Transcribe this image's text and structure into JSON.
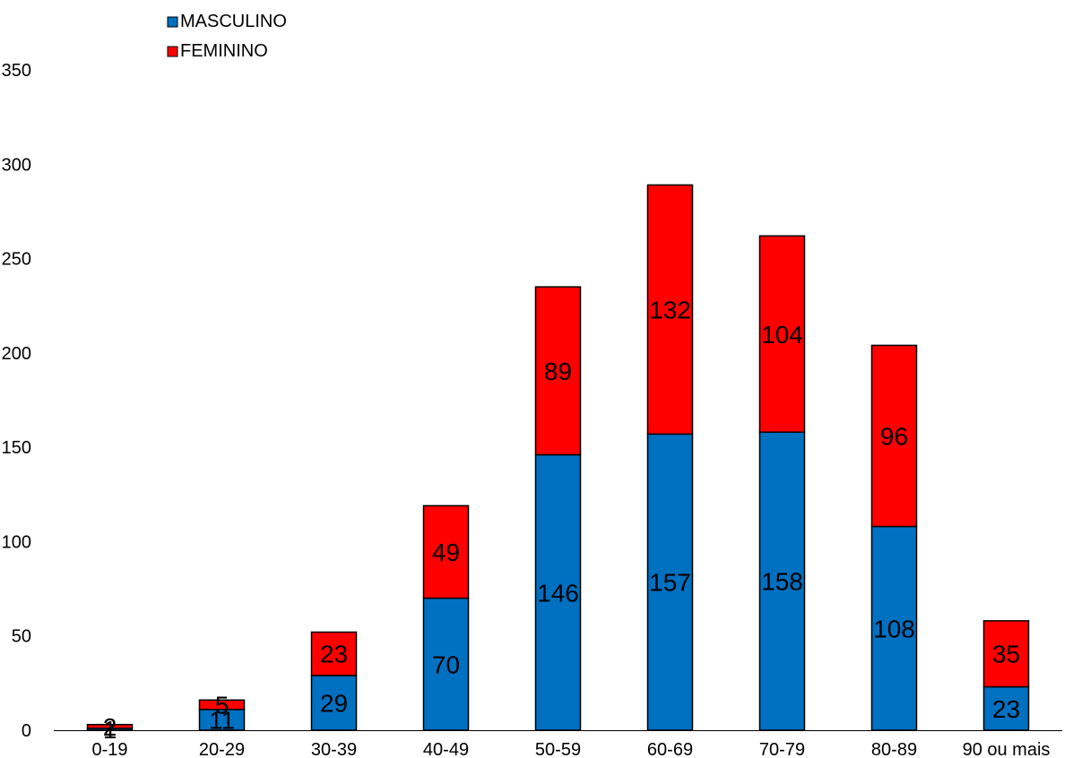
{
  "chart_data": {
    "type": "bar",
    "stacked": true,
    "categories": [
      "0-19",
      "20-29",
      "30-39",
      "40-49",
      "50-59",
      "60-69",
      "70-79",
      "80-89",
      "90 ou mais"
    ],
    "series": [
      {
        "name": "MASCULINO",
        "color": "#0070c0",
        "values": [
          1,
          11,
          29,
          70,
          146,
          157,
          158,
          108,
          23
        ],
        "labels": [
          "1",
          "11",
          "29",
          "70",
          "146",
          "157",
          "158",
          "108",
          "23"
        ]
      },
      {
        "name": "FEMININO",
        "color": "#ff0000",
        "values": [
          2,
          5,
          23,
          49,
          89,
          132,
          104,
          96,
          35
        ],
        "labels": [
          "2",
          "5",
          "23",
          "49",
          "89",
          "132",
          "104",
          "96",
          "35"
        ]
      }
    ],
    "yticks": [
      "0",
      "50",
      "100",
      "150",
      "200",
      "250",
      "300",
      "350"
    ],
    "ylim": [
      0,
      350
    ],
    "legend_position": "top-left",
    "grid": false
  }
}
